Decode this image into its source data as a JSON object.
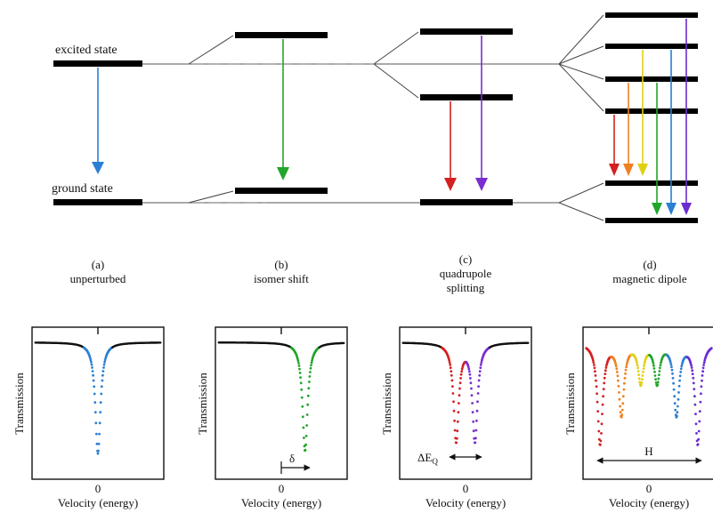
{
  "levels": {
    "excited_label": "excited state",
    "ground_label": "ground state"
  },
  "panels": [
    {
      "letter": "(a)",
      "title_lines": [
        "unperturbed"
      ],
      "ylabel": "Transmission",
      "xlabel": "Velocity (energy)",
      "zero": "0",
      "dips": [
        {
          "v": 0.0,
          "depth": 0.86,
          "color": "#2a7fd4"
        }
      ],
      "annotation": "",
      "annotation_type": "none"
    },
    {
      "letter": "(b)",
      "title_lines": [
        "isomer shift"
      ],
      "ylabel": "Transmission",
      "xlabel": "Velocity (energy)",
      "zero": "0",
      "dips": [
        {
          "v": 0.38,
          "depth": 0.84,
          "color": "#22a52b"
        }
      ],
      "annotation": "δ",
      "annotation_type": "shift"
    },
    {
      "letter": "(c)",
      "title_lines": [
        "quadrupole",
        "splitting"
      ],
      "ylabel": "Transmission",
      "xlabel": "Velocity (energy)",
      "zero": "0",
      "dips": [
        {
          "v": -0.15,
          "depth": 0.76,
          "color": "#d42020"
        },
        {
          "v": 0.15,
          "depth": 0.76,
          "color": "#7a2dd0"
        }
      ],
      "annotation": "ΔE",
      "annotation_sub": "Q",
      "annotation_type": "split"
    },
    {
      "letter": "(d)",
      "title_lines": [
        "magnetic dipole"
      ],
      "ylabel": "Transmission",
      "xlabel": "Velocity (energy)",
      "zero": "0",
      "dips": [
        {
          "v": -0.78,
          "depth": 0.78,
          "color": "#d42020"
        },
        {
          "v": -0.44,
          "depth": 0.55,
          "color": "#f08020"
        },
        {
          "v": -0.13,
          "depth": 0.3,
          "color": "#e0d010"
        },
        {
          "v": 0.13,
          "depth": 0.3,
          "color": "#22a52b"
        },
        {
          "v": 0.44,
          "depth": 0.55,
          "color": "#2a7fd4"
        },
        {
          "v": 0.78,
          "depth": 0.78,
          "color": "#6a2dd0"
        }
      ],
      "annotation": "H",
      "annotation_type": "split_wide"
    }
  ],
  "colors": {
    "blue": "#2a7fd4",
    "green": "#22a52b",
    "red": "#d42020",
    "purple": "#7a2dd0",
    "orange": "#f08020",
    "yellow": "#e0d010",
    "violet": "#6a2dd0",
    "level": "#000000"
  }
}
